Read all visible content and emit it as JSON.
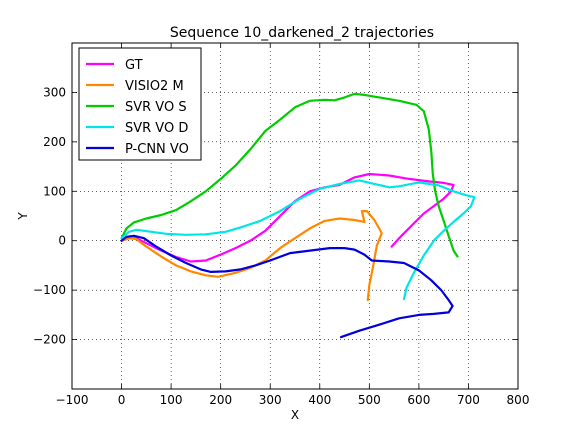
{
  "chart_data": {
    "type": "line",
    "title": "Sequence 10_darkened_2 trajectories",
    "xlabel": "X",
    "ylabel": "Y",
    "xlim": [
      -100,
      800
    ],
    "ylim": [
      -300,
      400
    ],
    "xticks": [
      -100,
      0,
      100,
      200,
      300,
      400,
      500,
      600,
      700,
      800
    ],
    "yticks": [
      -200,
      -100,
      0,
      100,
      200,
      300
    ],
    "xtick_labels": [
      "−100",
      "0",
      "100",
      "200",
      "300",
      "400",
      "500",
      "600",
      "700",
      "800"
    ],
    "ytick_labels": [
      "−200",
      "−100",
      "0",
      "100",
      "200",
      "300"
    ],
    "grid": true,
    "legend_position": "top-left",
    "series": [
      {
        "name": "GT",
        "color": "#ff00ff",
        "points": [
          [
            0,
            0
          ],
          [
            15,
            5
          ],
          [
            30,
            5
          ],
          [
            50,
            -5
          ],
          [
            80,
            -20
          ],
          [
            110,
            -33
          ],
          [
            140,
            -42
          ],
          [
            170,
            -40
          ],
          [
            200,
            -28
          ],
          [
            230,
            -15
          ],
          [
            260,
            0
          ],
          [
            290,
            20
          ],
          [
            320,
            50
          ],
          [
            350,
            80
          ],
          [
            380,
            100
          ],
          [
            410,
            108
          ],
          [
            440,
            113
          ],
          [
            470,
            128
          ],
          [
            500,
            135
          ],
          [
            540,
            132
          ],
          [
            580,
            125
          ],
          [
            620,
            120
          ],
          [
            650,
            117
          ],
          [
            670,
            113
          ],
          [
            665,
            100
          ],
          [
            650,
            85
          ],
          [
            630,
            70
          ],
          [
            610,
            55
          ],
          [
            590,
            35
          ],
          [
            565,
            10
          ],
          [
            545,
            -12
          ]
        ]
      },
      {
        "name": "VISIO2 M",
        "color": "#ff8800",
        "points": [
          [
            0,
            0
          ],
          [
            15,
            5
          ],
          [
            30,
            3
          ],
          [
            50,
            -12
          ],
          [
            80,
            -32
          ],
          [
            110,
            -50
          ],
          [
            140,
            -62
          ],
          [
            170,
            -70
          ],
          [
            195,
            -73
          ],
          [
            230,
            -65
          ],
          [
            260,
            -55
          ],
          [
            290,
            -40
          ],
          [
            320,
            -15
          ],
          [
            350,
            5
          ],
          [
            380,
            25
          ],
          [
            410,
            40
          ],
          [
            440,
            45
          ],
          [
            470,
            42
          ],
          [
            490,
            38
          ],
          [
            485,
            60
          ],
          [
            495,
            60
          ],
          [
            510,
            42
          ],
          [
            520,
            25
          ],
          [
            525,
            15
          ],
          [
            515,
            -10
          ],
          [
            508,
            -50
          ],
          [
            500,
            -90
          ],
          [
            497,
            -120
          ]
        ]
      },
      {
        "name": "SVR VO S",
        "color": "#00cc00",
        "points": [
          [
            0,
            5
          ],
          [
            10,
            25
          ],
          [
            25,
            37
          ],
          [
            50,
            45
          ],
          [
            80,
            52
          ],
          [
            110,
            62
          ],
          [
            140,
            80
          ],
          [
            170,
            100
          ],
          [
            200,
            125
          ],
          [
            230,
            152
          ],
          [
            260,
            185
          ],
          [
            290,
            222
          ],
          [
            320,
            245
          ],
          [
            350,
            270
          ],
          [
            380,
            283
          ],
          [
            410,
            285
          ],
          [
            430,
            284
          ],
          [
            450,
            290
          ],
          [
            470,
            297
          ],
          [
            490,
            295
          ],
          [
            520,
            290
          ],
          [
            560,
            283
          ],
          [
            595,
            275
          ],
          [
            610,
            262
          ],
          [
            620,
            225
          ],
          [
            625,
            180
          ],
          [
            628,
            135
          ],
          [
            633,
            100
          ],
          [
            640,
            70
          ],
          [
            650,
            40
          ],
          [
            660,
            10
          ],
          [
            670,
            -20
          ],
          [
            678,
            -32
          ]
        ]
      },
      {
        "name": "SVR VO D",
        "color": "#00e5e5",
        "points": [
          [
            0,
            5
          ],
          [
            15,
            18
          ],
          [
            30,
            22
          ],
          [
            60,
            18
          ],
          [
            90,
            14
          ],
          [
            130,
            12
          ],
          [
            170,
            13
          ],
          [
            210,
            18
          ],
          [
            240,
            27
          ],
          [
            280,
            40
          ],
          [
            320,
            60
          ],
          [
            360,
            85
          ],
          [
            400,
            105
          ],
          [
            440,
            115
          ],
          [
            480,
            122
          ],
          [
            510,
            115
          ],
          [
            540,
            108
          ],
          [
            560,
            110
          ],
          [
            600,
            118
          ],
          [
            640,
            112
          ],
          [
            670,
            100
          ],
          [
            695,
            92
          ],
          [
            712,
            88
          ],
          [
            705,
            70
          ],
          [
            690,
            55
          ],
          [
            670,
            38
          ],
          [
            650,
            20
          ],
          [
            630,
            0
          ],
          [
            610,
            -30
          ],
          [
            590,
            -65
          ],
          [
            575,
            -95
          ],
          [
            570,
            -118
          ]
        ]
      },
      {
        "name": "P-CNN VO",
        "color": "#0000dd",
        "points": [
          [
            0,
            0
          ],
          [
            10,
            8
          ],
          [
            25,
            10
          ],
          [
            45,
            5
          ],
          [
            70,
            -12
          ],
          [
            100,
            -30
          ],
          [
            130,
            -45
          ],
          [
            160,
            -58
          ],
          [
            180,
            -63
          ],
          [
            210,
            -62
          ],
          [
            240,
            -58
          ],
          [
            270,
            -50
          ],
          [
            300,
            -40
          ],
          [
            340,
            -25
          ],
          [
            380,
            -20
          ],
          [
            420,
            -15
          ],
          [
            450,
            -15
          ],
          [
            470,
            -18
          ],
          [
            490,
            -28
          ],
          [
            505,
            -40
          ],
          [
            540,
            -42
          ],
          [
            570,
            -45
          ],
          [
            600,
            -60
          ],
          [
            625,
            -80
          ],
          [
            645,
            -100
          ],
          [
            660,
            -120
          ],
          [
            668,
            -132
          ],
          [
            660,
            -145
          ],
          [
            630,
            -148
          ],
          [
            600,
            -150
          ],
          [
            560,
            -157
          ],
          [
            520,
            -170
          ],
          [
            480,
            -182
          ],
          [
            443,
            -195
          ]
        ]
      }
    ]
  }
}
